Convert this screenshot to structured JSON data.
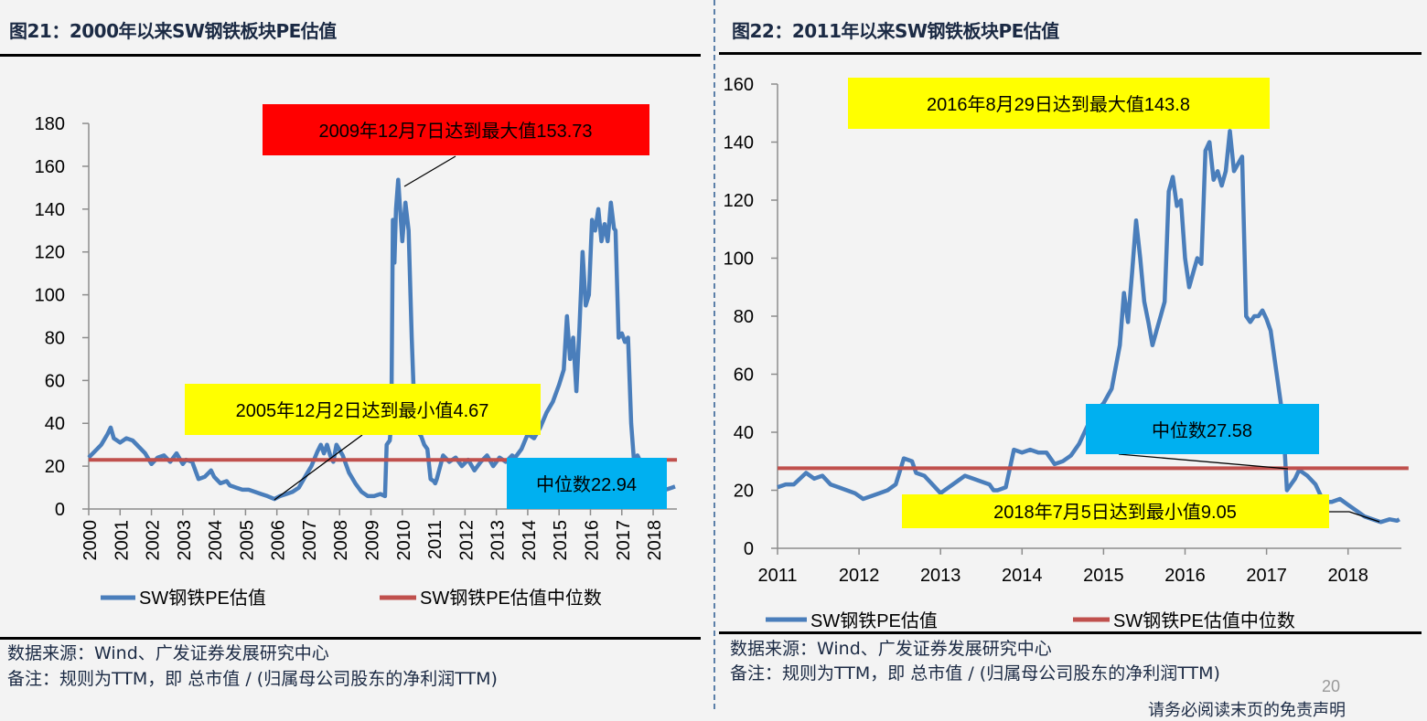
{
  "page": {
    "page_number": "20",
    "disclaimer": "请务必阅读末页的免责声明"
  },
  "left": {
    "title": "图21：2000年以来SW钢铁板块PE估值",
    "source": "数据来源：Wind、广发证券发展研究中心",
    "note": "备注：规则为TTM，即 总市值 / (归属母公司股东的净利润TTM)"
  },
  "right": {
    "title": "图22：2011年以来SW钢铁板块PE估值",
    "source": "数据来源：Wind、广发证券发展研究中心",
    "note": "备注：规则为TTM，即 总市值 / (归属母公司股东的净利润TTM)"
  },
  "colors": {
    "series": "#4a7ebb",
    "median": "#c0504d",
    "red_box": "#ff0000",
    "yellow_box": "#ffff00",
    "blue_box": "#00b0f0"
  },
  "chart_data": [
    {
      "type": "line",
      "title": "图21：2000年以来SW钢铁板块PE估值",
      "xlabel": "",
      "ylabel": "",
      "ylim": [
        0,
        180
      ],
      "xlim": [
        2000,
        2018.7
      ],
      "y_ticks": [
        "0",
        "20",
        "40",
        "60",
        "80",
        "100",
        "120",
        "140",
        "160",
        "180"
      ],
      "x_ticks": [
        "2000",
        "2001",
        "2002",
        "2003",
        "2004",
        "2005",
        "2006",
        "2007",
        "2008",
        "2009",
        "2010",
        "2011",
        "2012",
        "2013",
        "2014",
        "2015",
        "2016",
        "2017",
        "2018"
      ],
      "legend": [
        "SW钢铁PE估值",
        "SW钢铁PE估值中位数"
      ],
      "legend_position": "bottom",
      "series": [
        {
          "name": "SW钢铁PE估值",
          "x": [
            2000.0,
            2000.2,
            2000.4,
            2000.6,
            2000.7,
            2000.8,
            2001.0,
            2001.2,
            2001.4,
            2001.6,
            2001.8,
            2002.0,
            2002.2,
            2002.4,
            2002.6,
            2002.8,
            2003.0,
            2003.1,
            2003.3,
            2003.5,
            2003.7,
            2003.9,
            2004.0,
            2004.2,
            2004.4,
            2004.5,
            2004.7,
            2004.9,
            2005.1,
            2005.3,
            2005.5,
            2005.7,
            2005.92,
            2006.1,
            2006.3,
            2006.5,
            2006.7,
            2006.9,
            2007.1,
            2007.3,
            2007.4,
            2007.5,
            2007.6,
            2007.7,
            2007.8,
            2007.9,
            2008.1,
            2008.3,
            2008.5,
            2008.7,
            2008.9,
            2009.1,
            2009.3,
            2009.45,
            2009.5,
            2009.6,
            2009.65,
            2009.7,
            2009.75,
            2009.8,
            2009.87,
            2009.93,
            2010.0,
            2010.1,
            2010.2,
            2010.3,
            2010.4,
            2010.45,
            2010.5,
            2010.6,
            2010.7,
            2010.8,
            2010.9,
            2011.0,
            2011.05,
            2011.1,
            2011.3,
            2011.5,
            2011.7,
            2011.9,
            2012.1,
            2012.3,
            2012.5,
            2012.7,
            2012.9,
            2013.1,
            2013.3,
            2013.5,
            2013.6,
            2013.8,
            2014.0,
            2014.2,
            2014.4,
            2014.6,
            2014.8,
            2015.0,
            2015.15,
            2015.25,
            2015.35,
            2015.45,
            2015.55,
            2015.65,
            2015.75,
            2015.85,
            2015.95,
            2016.05,
            2016.15,
            2016.25,
            2016.35,
            2016.45,
            2016.55,
            2016.65,
            2016.75,
            2016.8,
            2016.9,
            2017.0,
            2017.1,
            2017.2,
            2017.25,
            2017.3,
            2017.4,
            2017.5,
            2017.6,
            2017.7,
            2017.8,
            2017.9,
            2018.0,
            2018.2,
            2018.4,
            2018.6,
            2018.7
          ],
          "y": [
            24,
            27,
            30,
            35,
            38,
            33,
            31,
            33,
            32,
            29,
            26,
            21,
            24,
            25,
            22,
            26,
            21,
            23,
            22,
            14,
            15,
            18,
            15,
            12,
            13,
            11,
            10,
            9,
            9,
            8,
            7,
            6,
            4.67,
            6,
            7,
            8,
            10,
            15,
            20,
            27,
            30,
            26,
            30,
            25,
            22,
            30,
            25,
            17,
            12,
            8,
            6,
            6,
            7,
            6,
            30,
            32,
            40,
            135,
            115,
            140,
            153.73,
            140,
            125,
            143,
            130,
            80,
            40,
            38,
            36,
            34,
            30,
            28,
            14,
            13,
            12,
            14,
            25,
            22,
            24,
            20,
            23,
            18,
            22,
            25,
            20,
            24,
            22,
            25,
            24,
            28,
            35,
            33,
            38,
            45,
            50,
            58,
            65,
            90,
            70,
            80,
            55,
            85,
            120,
            95,
            100,
            135,
            130,
            140,
            125,
            133,
            125,
            143,
            131,
            130,
            80,
            82,
            78,
            80,
            60,
            40,
            20,
            25,
            22,
            22,
            20,
            10,
            10,
            9,
            9,
            10,
            10.5
          ]
        },
        {
          "name": "SW钢铁PE估值中位数",
          "x": [
            2000,
            2018.7
          ],
          "y": [
            22.94,
            22.94
          ]
        }
      ],
      "annotations": [
        {
          "text": "2009年12月7日达到最大值153.73",
          "box_color": "#ff0000",
          "x": 2009.93,
          "y": 153.73
        },
        {
          "text": "2005年12月2日达到最小值4.67",
          "box_color": "#ffff00",
          "x": 2005.92,
          "y": 4.67
        },
        {
          "text": "中位数22.94",
          "box_color": "#00b0f0",
          "value": 22.94
        }
      ]
    },
    {
      "type": "line",
      "title": "图22：2011年以来SW钢铁板块PE估值",
      "xlabel": "",
      "ylabel": "",
      "ylim": [
        0,
        160
      ],
      "xlim": [
        2011,
        2018.63
      ],
      "y_ticks": [
        "0",
        "20",
        "40",
        "60",
        "80",
        "100",
        "120",
        "140",
        "160"
      ],
      "x_ticks": [
        "2011",
        "2012",
        "2013",
        "2014",
        "2015",
        "2016",
        "2017",
        "2018"
      ],
      "legend": [
        "SW钢铁PE估值",
        "SW钢铁PE估值中位数"
      ],
      "legend_position": "bottom",
      "series": [
        {
          "name": "SW钢铁PE估值",
          "x": [
            2011.0,
            2011.1,
            2011.2,
            2011.35,
            2011.45,
            2011.55,
            2011.65,
            2011.75,
            2011.85,
            2011.95,
            2012.05,
            2012.15,
            2012.25,
            2012.35,
            2012.45,
            2012.55,
            2012.65,
            2012.7,
            2012.8,
            2012.9,
            2013.0,
            2013.1,
            2013.2,
            2013.3,
            2013.4,
            2013.5,
            2013.6,
            2013.65,
            2013.7,
            2013.8,
            2013.9,
            2014.0,
            2014.1,
            2014.2,
            2014.3,
            2014.4,
            2014.5,
            2014.6,
            2014.7,
            2014.8,
            2014.9,
            2015.0,
            2015.1,
            2015.2,
            2015.25,
            2015.3,
            2015.35,
            2015.4,
            2015.45,
            2015.5,
            2015.55,
            2015.6,
            2015.65,
            2015.7,
            2015.75,
            2015.8,
            2015.85,
            2015.9,
            2015.95,
            2016.0,
            2016.05,
            2016.1,
            2016.15,
            2016.2,
            2016.25,
            2016.3,
            2016.35,
            2016.4,
            2016.45,
            2016.5,
            2016.55,
            2016.6,
            2016.66,
            2016.7,
            2016.75,
            2016.8,
            2016.85,
            2016.9,
            2016.95,
            2017.0,
            2017.05,
            2017.1,
            2017.2,
            2017.25,
            2017.3,
            2017.35,
            2017.4,
            2017.5,
            2017.6,
            2017.7,
            2017.8,
            2017.9,
            2018.0,
            2018.1,
            2018.2,
            2018.3,
            2018.4,
            2018.51,
            2018.6,
            2018.63
          ],
          "y": [
            21,
            22,
            22,
            26,
            24,
            25,
            22,
            21,
            20,
            19,
            17,
            18,
            19,
            20,
            22,
            31,
            30,
            26,
            25,
            22,
            19,
            21,
            23,
            25,
            24,
            23,
            22,
            20,
            20,
            21,
            34,
            33,
            34,
            33,
            33,
            29,
            30,
            32,
            36,
            42,
            47,
            50,
            55,
            70,
            88,
            78,
            95,
            113,
            100,
            85,
            78,
            70,
            75,
            80,
            85,
            123,
            128,
            118,
            120,
            100,
            90,
            95,
            100,
            98,
            137,
            140,
            127,
            130,
            125,
            130,
            143.8,
            130,
            133,
            135,
            80,
            78,
            80,
            80,
            82,
            79,
            75,
            65,
            45,
            20,
            22,
            24,
            27,
            25,
            22,
            16,
            16,
            17,
            15,
            13,
            11,
            10,
            9.05,
            10,
            9.5,
            10
          ]
        },
        {
          "name": "SW钢铁PE估值中位数",
          "x": [
            2011,
            2018.63
          ],
          "y": [
            27.58,
            27.58
          ]
        }
      ],
      "annotations": [
        {
          "text": "2016年8月29日达到最大值143.8",
          "box_color": "#ffff00",
          "x": 2016.66,
          "y": 143.8
        },
        {
          "text": "中位数27.58",
          "box_color": "#00b0f0",
          "value": 27.58
        },
        {
          "text": "2018年7月5日达到最小值9.05",
          "box_color": "#ffff00",
          "x": 2018.51,
          "y": 9.05
        }
      ]
    }
  ]
}
